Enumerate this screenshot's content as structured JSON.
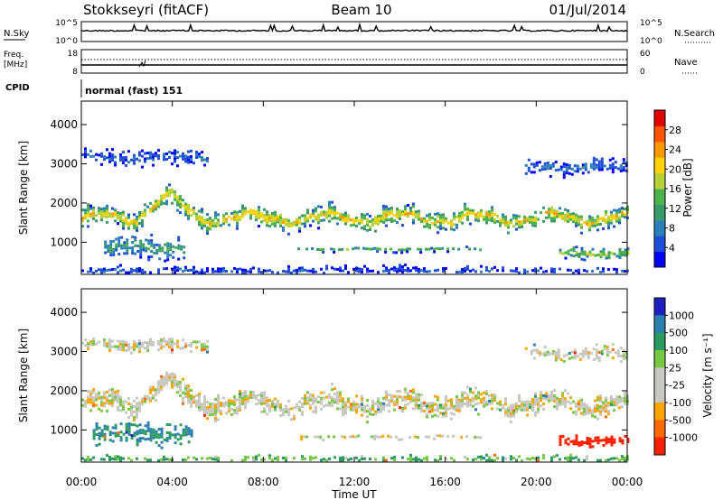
{
  "header": {
    "station": "Stokkseyri (fitACF)",
    "beam": "Beam 10",
    "date": "01/Jul/2014"
  },
  "nsky_panel": {
    "left_label": "N.Sky",
    "right_label": "N.Search",
    "left_ticks": [
      "10^5",
      "10^0"
    ],
    "right_ticks": [
      "10^5",
      "10^0"
    ]
  },
  "freq_panel": {
    "left_label_line1": "Freq.",
    "left_label_line2": "[MHz]",
    "right_label": "Nave",
    "left_ticks": [
      "18",
      "8"
    ],
    "right_ticks": [
      "60",
      "0"
    ]
  },
  "cpid": {
    "label": "CPID",
    "value": "normal (fast) 151"
  },
  "x_axis": {
    "label": "Time UT",
    "ticks": [
      "00:00",
      "04:00",
      "08:00",
      "12:00",
      "16:00",
      "20:00",
      "00:00"
    ],
    "range_hours": [
      0,
      24
    ]
  },
  "chart_data": [
    {
      "type": "heatmap",
      "quantity": "power",
      "ylabel": "Slant Range [km]",
      "yticks": [
        "1000",
        "2000",
        "3000",
        "4000"
      ],
      "ylim": [
        180,
        4600
      ],
      "colorbar_label": "Power [dB]",
      "colorbar_ticks": [
        "4",
        "8",
        "12",
        "16",
        "20",
        "24",
        "28"
      ],
      "colorbar_range": [
        0,
        32
      ],
      "colorbar_colors": [
        "#0000ff",
        "#1f4fd8",
        "#2c7fb8",
        "#3a9a6a",
        "#4db34d",
        "#b8d13a",
        "#ffd200",
        "#ff9900",
        "#ff5500",
        "#e00000"
      ],
      "echo_bands": [
        {
          "t_start": 0.0,
          "t_end": 24.0,
          "range_center": 1650,
          "width": 260,
          "peak_db": 22
        },
        {
          "t_start": 0.0,
          "t_end": 5.5,
          "range_center": 3200,
          "width": 220,
          "peak_db": 6
        },
        {
          "t_start": 19.5,
          "t_end": 24.0,
          "range_center": 2950,
          "width": 200,
          "peak_db": 7
        },
        {
          "t_start": 9.5,
          "t_end": 17.5,
          "range_center": 850,
          "width": 60,
          "peak_db": 14
        },
        {
          "t_start": 1.0,
          "t_end": 4.5,
          "range_center": 900,
          "width": 300,
          "peak_db": 12
        },
        {
          "t_start": 21.0,
          "t_end": 24.0,
          "range_center": 750,
          "width": 150,
          "peak_db": 18
        },
        {
          "t_start": 0.0,
          "t_end": 24.0,
          "range_center": 300,
          "width": 120,
          "peak_db": 5
        }
      ]
    },
    {
      "type": "heatmap",
      "quantity": "velocity",
      "ylabel": "Slant Range [km]",
      "yticks": [
        "1000",
        "2000",
        "3000",
        "4000"
      ],
      "ylim": [
        180,
        4600
      ],
      "colorbar_label": "Velocity [m s⁻¹]",
      "colorbar_ticks": [
        "1000",
        "500",
        "100",
        "25",
        "-25",
        "-100",
        "-500",
        "-1000"
      ],
      "colorbar_colors": [
        "#2020c0",
        "#2a7fb0",
        "#2a9a60",
        "#77c944",
        "#c8c8c0",
        "#c8c8c0",
        "#ffa500",
        "#ff6a00",
        "#ff2000"
      ],
      "echo_bands": [
        {
          "t_start": 0.0,
          "t_end": 24.0,
          "range_center": 1700,
          "width": 300,
          "velocity": 0
        },
        {
          "t_start": 0.0,
          "t_end": 5.5,
          "range_center": 3200,
          "width": 200,
          "velocity": 0
        },
        {
          "t_start": 19.5,
          "t_end": 24.0,
          "range_center": 3000,
          "width": 200,
          "velocity": 0
        },
        {
          "t_start": 9.5,
          "t_end": 17.5,
          "range_center": 850,
          "width": 60,
          "velocity": 0
        },
        {
          "t_start": 0.5,
          "t_end": 4.8,
          "range_center": 950,
          "width": 300,
          "velocity": 300
        },
        {
          "t_start": 21.0,
          "t_end": 24.0,
          "range_center": 750,
          "width": 150,
          "velocity": -700
        },
        {
          "t_start": 0.0,
          "t_end": 24.0,
          "range_center": 280,
          "width": 100,
          "velocity": 60
        }
      ]
    }
  ]
}
